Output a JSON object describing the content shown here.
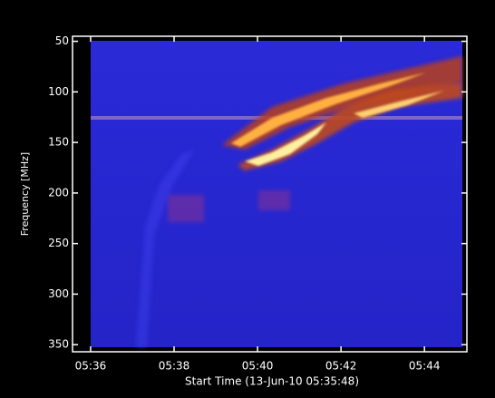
{
  "chart_data": {
    "type": "spectrogram",
    "x_label": "Start Time (13-Jun-10 05:35:48)",
    "y_label": "Frequency [MHz]",
    "xlim": [
      "05:35:34",
      "05:45:01"
    ],
    "xticks": [
      "05:36",
      "05:38",
      "05:40",
      "05:42",
      "05:44"
    ],
    "ylim": [
      45,
      357
    ],
    "y_inverted": true,
    "yticks": [
      50,
      100,
      150,
      200,
      250,
      300,
      350
    ],
    "grid": false
  }
}
